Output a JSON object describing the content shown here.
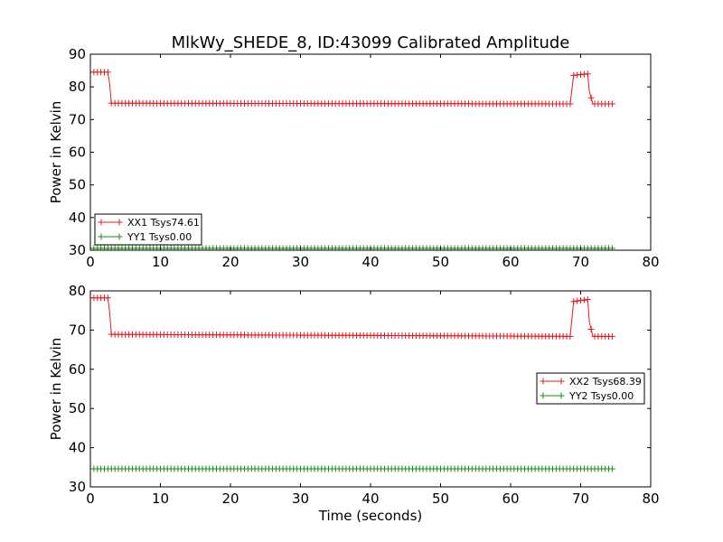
{
  "title": "MlkWy_SHEDE_8, ID:43099 Calibrated Amplitude",
  "colors": {
    "xx": "#e41a1c",
    "yy": "#1a8a1a"
  },
  "chart_data": [
    {
      "type": "line",
      "xlabel": "",
      "ylabel": "Power in Kelvin",
      "xlim": [
        0,
        80
      ],
      "ylim": [
        30,
        90
      ],
      "xticks": [
        "0",
        "10",
        "20",
        "30",
        "40",
        "50",
        "60",
        "70",
        "80"
      ],
      "yticks": [
        "30",
        "40",
        "50",
        "60",
        "70",
        "80",
        "90"
      ],
      "legend_position": "lower-left",
      "series": [
        {
          "name": "XX1 Tsys74.61",
          "color": "#e41a1c",
          "points": [
            [
              0,
              84.5
            ],
            [
              2.5,
              84.5
            ],
            [
              2.75,
              81
            ],
            [
              3,
              75
            ],
            [
              68.5,
              74.8
            ],
            [
              69,
              83.5
            ],
            [
              71,
              84
            ],
            [
              71.25,
              78.5
            ],
            [
              71.75,
              74.8
            ],
            [
              74.5,
              74.8
            ]
          ]
        },
        {
          "name": "YY1 Tsys0.00",
          "color": "#1a8a1a",
          "points": [
            [
              0,
              30.6
            ],
            [
              74.5,
              30.6
            ]
          ]
        }
      ]
    },
    {
      "type": "line",
      "xlabel": "Time (seconds)",
      "ylabel": "Power in Kelvin",
      "xlim": [
        0,
        80
      ],
      "ylim": [
        30,
        80
      ],
      "xticks": [
        "0",
        "10",
        "20",
        "30",
        "40",
        "50",
        "60",
        "70",
        "80"
      ],
      "yticks": [
        "30",
        "40",
        "50",
        "60",
        "70",
        "80"
      ],
      "legend_position": "center-right",
      "series": [
        {
          "name": "XX2 Tsys68.39",
          "color": "#e41a1c",
          "points": [
            [
              0,
              78.2
            ],
            [
              2.5,
              78.2
            ],
            [
              2.75,
              74.5
            ],
            [
              3,
              68.9
            ],
            [
              68.5,
              68.4
            ],
            [
              69,
              77.3
            ],
            [
              71,
              77.8
            ],
            [
              71.25,
              72
            ],
            [
              71.75,
              68.4
            ],
            [
              74.5,
              68.4
            ]
          ]
        },
        {
          "name": "YY2 Tsys0.00",
          "color": "#1a8a1a",
          "points": [
            [
              0,
              34.6
            ],
            [
              74.5,
              34.6
            ]
          ]
        }
      ]
    }
  ]
}
